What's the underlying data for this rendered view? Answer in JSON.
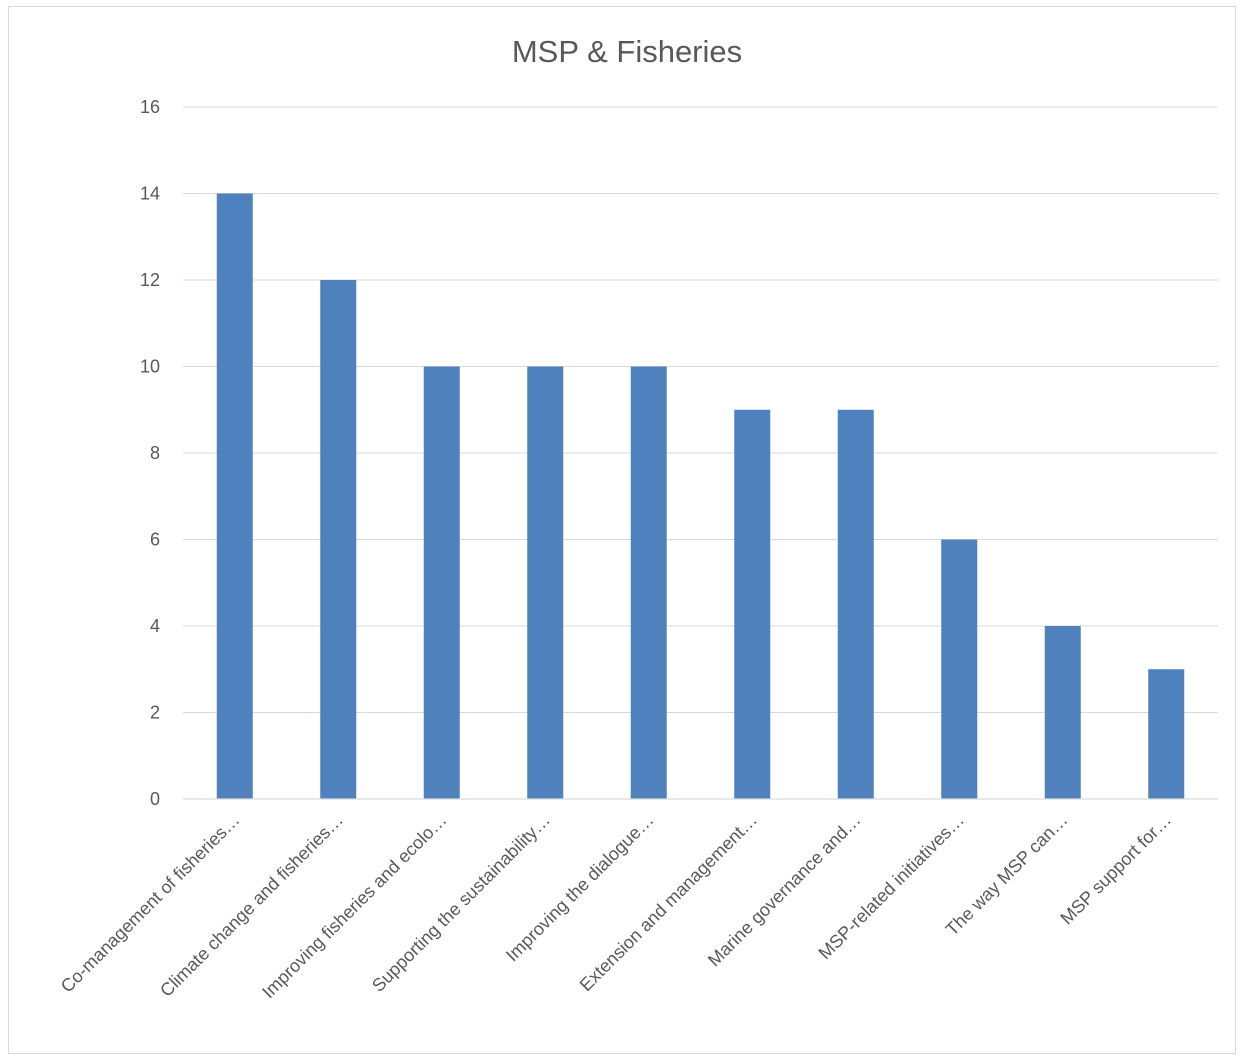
{
  "chart_data": {
    "type": "bar",
    "title": "MSP & Fisheries",
    "categories": [
      "Co-management of fisheries…",
      "Climate change and fisheries…",
      "Improving fisheries and ecolo…",
      "Supporting the sustainability…",
      "Improving the dialogue…",
      "Extension and management…",
      "Marine governance and…",
      "MSP-related initiatives…",
      "The way MSP can…",
      "MSP support for…"
    ],
    "values": [
      14,
      12,
      10,
      10,
      10,
      9,
      9,
      6,
      4,
      3
    ],
    "ylim": [
      0,
      16
    ],
    "yticks": [
      0,
      2,
      4,
      6,
      8,
      10,
      12,
      14,
      16
    ],
    "grid": true,
    "legend": "none",
    "colors": {
      "bar": "#4f81bd"
    }
  }
}
